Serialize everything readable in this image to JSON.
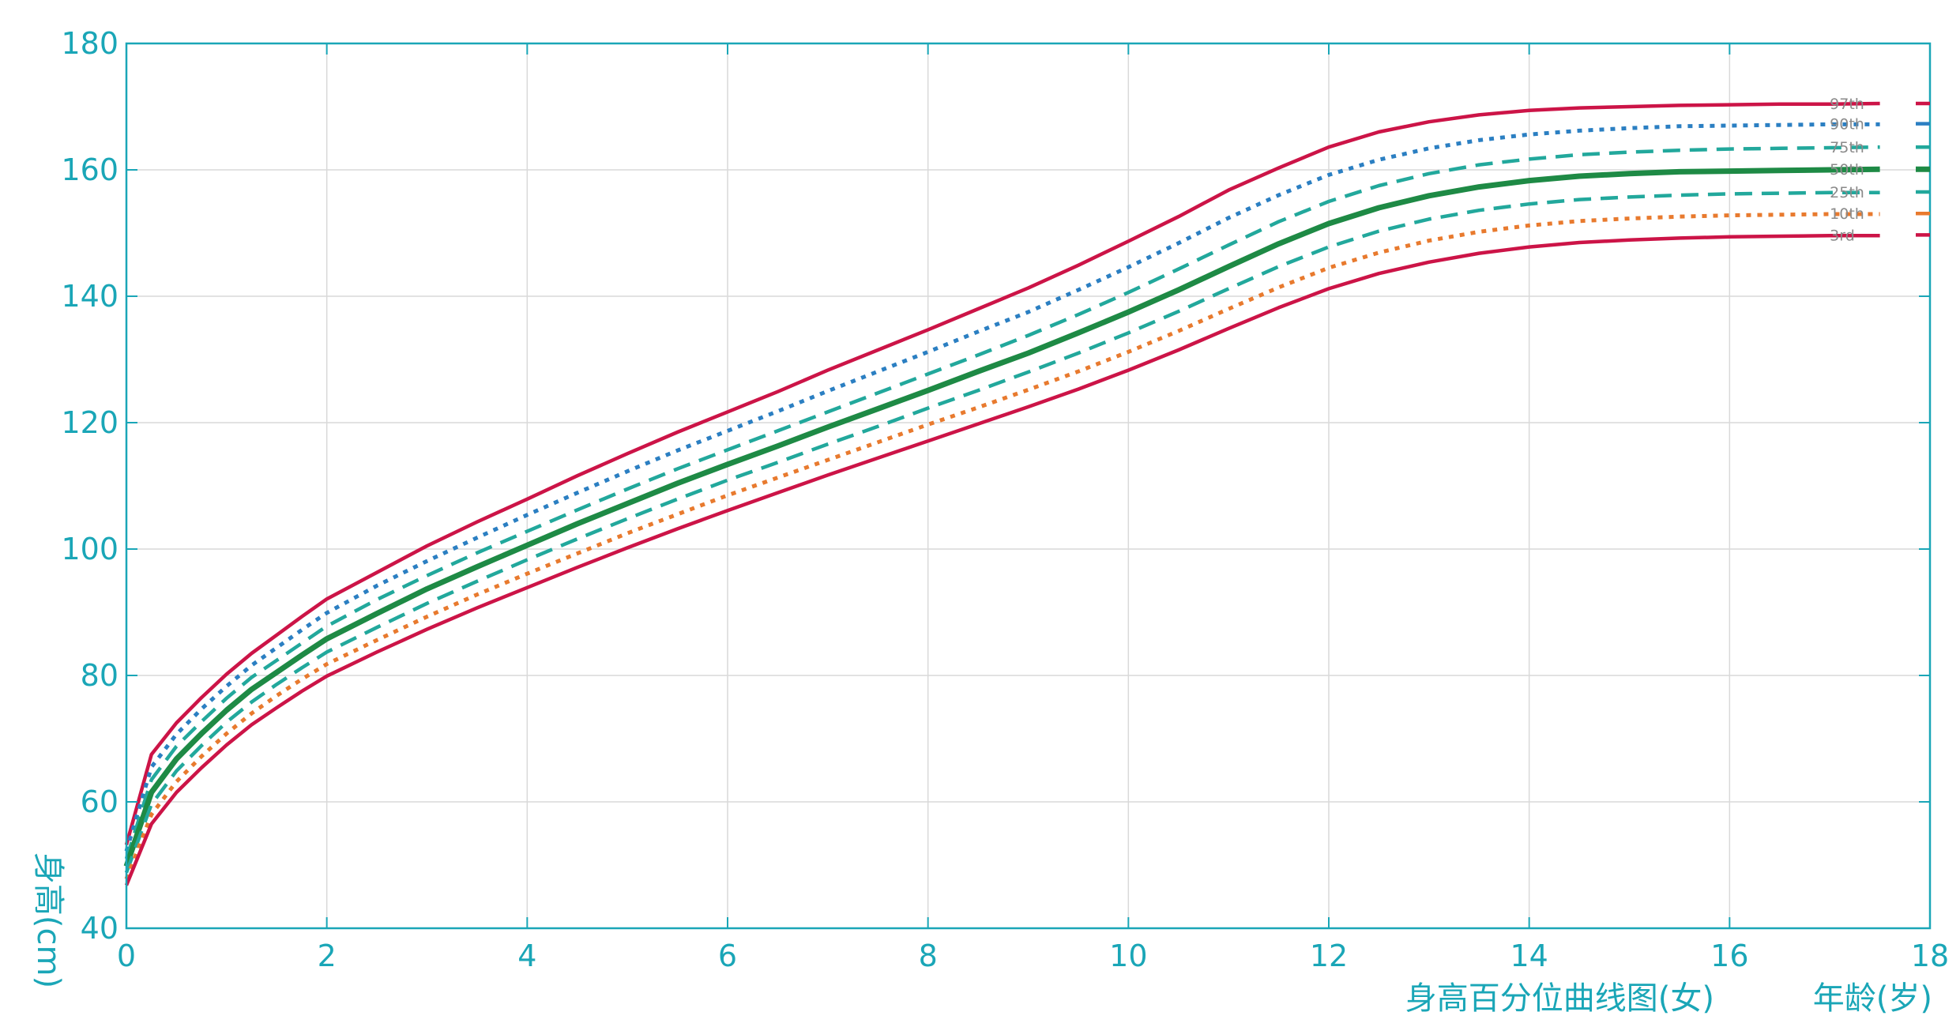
{
  "chart_data": {
    "type": "line",
    "title": "身高百分位曲线图(女)",
    "xlabel": "年龄(岁)",
    "ylabel": "身高(cm)",
    "xlim": [
      0,
      18
    ],
    "ylim": [
      40,
      180
    ],
    "xticks": [
      0,
      2,
      4,
      6,
      8,
      10,
      12,
      14,
      16,
      18
    ],
    "yticks": [
      40,
      60,
      80,
      100,
      120,
      140,
      160,
      180
    ],
    "grid": true,
    "x": [
      0,
      0.25,
      0.5,
      0.75,
      1,
      1.25,
      1.5,
      1.75,
      2,
      2.5,
      3,
      3.5,
      4,
      4.5,
      5,
      5.5,
      6,
      6.5,
      7,
      7.5,
      8,
      8.5,
      9,
      9.5,
      10,
      10.5,
      11,
      11.5,
      12,
      12.5,
      13,
      13.5,
      14,
      14.5,
      15,
      15.5,
      16,
      16.5,
      17,
      17.5,
      18
    ],
    "series": [
      {
        "name": "97th",
        "color": "#cc1447",
        "dash": "solid",
        "values": [
          53.2,
          67.5,
          72.5,
          76.5,
          80.2,
          83.5,
          86.4,
          89.3,
          92.1,
          96.3,
          100.5,
          104.3,
          107.9,
          111.6,
          115.1,
          118.5,
          121.7,
          124.9,
          128.3,
          131.5,
          134.7,
          138.0,
          141.3,
          144.9,
          148.7,
          152.6,
          156.8,
          160.3,
          163.6,
          166.0,
          167.6,
          168.7,
          169.4,
          169.8,
          170.0,
          170.2,
          170.3,
          170.4,
          170.4,
          170.5,
          170.5
        ]
      },
      {
        "name": "90th",
        "color": "#2b7fc2",
        "dash": "dot",
        "values": [
          52.2,
          65.5,
          70.7,
          74.7,
          78.3,
          81.6,
          84.4,
          87.2,
          89.9,
          94.2,
          98.1,
          101.8,
          105.4,
          108.9,
          112.3,
          115.6,
          118.7,
          121.8,
          125.0,
          128.1,
          131.2,
          134.4,
          137.5,
          141.0,
          144.6,
          148.4,
          152.4,
          156.0,
          159.2,
          161.6,
          163.4,
          164.7,
          165.6,
          166.2,
          166.6,
          166.9,
          167.0,
          167.1,
          167.2,
          167.2,
          167.3
        ]
      },
      {
        "name": "75th",
        "color": "#22a89c",
        "dash": "dash",
        "values": [
          51.0,
          63.5,
          68.8,
          72.7,
          76.4,
          79.7,
          82.4,
          85.1,
          87.8,
          92.0,
          95.8,
          99.4,
          102.8,
          106.2,
          109.5,
          112.7,
          115.7,
          118.7,
          121.7,
          124.7,
          127.7,
          130.7,
          133.8,
          137.1,
          140.6,
          144.3,
          148.1,
          151.8,
          155.0,
          157.5,
          159.4,
          160.8,
          161.7,
          162.4,
          162.8,
          163.1,
          163.3,
          163.4,
          163.5,
          163.6,
          163.6
        ]
      },
      {
        "name": "50th",
        "color": "#1e8a45",
        "dash": "solid",
        "values": [
          49.8,
          61.5,
          66.8,
          70.8,
          74.5,
          77.8,
          80.5,
          83.2,
          85.8,
          89.8,
          93.7,
          97.2,
          100.6,
          104.0,
          107.2,
          110.4,
          113.4,
          116.3,
          119.3,
          122.2,
          125.1,
          128.1,
          131.0,
          134.2,
          137.5,
          141.0,
          144.7,
          148.3,
          151.5,
          154.0,
          155.9,
          157.3,
          158.3,
          159.0,
          159.4,
          159.7,
          159.8,
          159.9,
          160.0,
          160.1,
          160.1
        ]
      },
      {
        "name": "25th",
        "color": "#22a89c",
        "dash": "dash",
        "values": [
          48.8,
          59.6,
          64.9,
          68.9,
          72.6,
          75.8,
          78.6,
          81.2,
          83.7,
          87.6,
          91.4,
          94.9,
          98.3,
          101.6,
          104.8,
          107.9,
          110.9,
          113.7,
          116.6,
          119.4,
          122.3,
          125.1,
          128.0,
          131.0,
          134.2,
          137.6,
          141.2,
          144.7,
          147.8,
          150.3,
          152.2,
          153.6,
          154.6,
          155.3,
          155.7,
          156.0,
          156.2,
          156.3,
          156.4,
          156.4,
          156.5
        ]
      },
      {
        "name": "10th",
        "color": "#e87a2e",
        "dash": "dot",
        "values": [
          47.8,
          58.0,
          63.2,
          67.2,
          70.8,
          74.0,
          76.8,
          79.4,
          81.8,
          85.6,
          89.3,
          92.8,
          96.1,
          99.3,
          102.5,
          105.5,
          108.5,
          111.3,
          114.1,
          116.9,
          119.7,
          122.4,
          125.2,
          128.1,
          131.2,
          134.5,
          138.0,
          141.4,
          144.5,
          146.9,
          148.8,
          150.2,
          151.2,
          151.9,
          152.3,
          152.6,
          152.8,
          152.9,
          153.0,
          153.0,
          153.1
        ]
      },
      {
        "name": "3rd",
        "color": "#cc1447",
        "dash": "solid",
        "values": [
          46.8,
          56.5,
          61.5,
          65.4,
          69.0,
          72.2,
          74.9,
          77.5,
          79.9,
          83.7,
          87.3,
          90.7,
          93.9,
          97.1,
          100.2,
          103.2,
          106.1,
          108.9,
          111.7,
          114.4,
          117.1,
          119.8,
          122.5,
          125.3,
          128.3,
          131.5,
          134.9,
          138.2,
          141.2,
          143.6,
          145.4,
          146.8,
          147.8,
          148.5,
          148.9,
          149.2,
          149.4,
          149.5,
          149.6,
          149.6,
          149.7
        ]
      }
    ]
  }
}
